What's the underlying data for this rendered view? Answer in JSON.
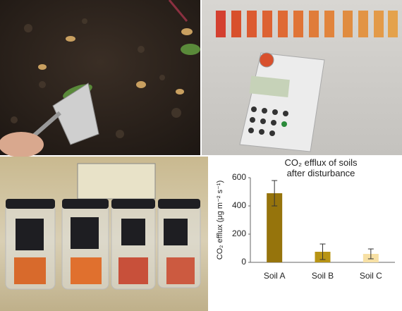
{
  "chart_data": {
    "type": "bar",
    "title": "CO₂ efflux of soils after disturbance",
    "y_label": "CO₂ efflux (μg m⁻² s⁻¹)",
    "categories": [
      "Soil A",
      "Soil B",
      "Soil C"
    ],
    "values": [
      490,
      75,
      60
    ],
    "errors": [
      90,
      55,
      35
    ],
    "colors": [
      "#96740c",
      "#b89414",
      "#f7e0a4"
    ],
    "ylim": [
      0,
      600
    ],
    "yticks": [
      0,
      200,
      400,
      600
    ],
    "grid": false
  }
}
